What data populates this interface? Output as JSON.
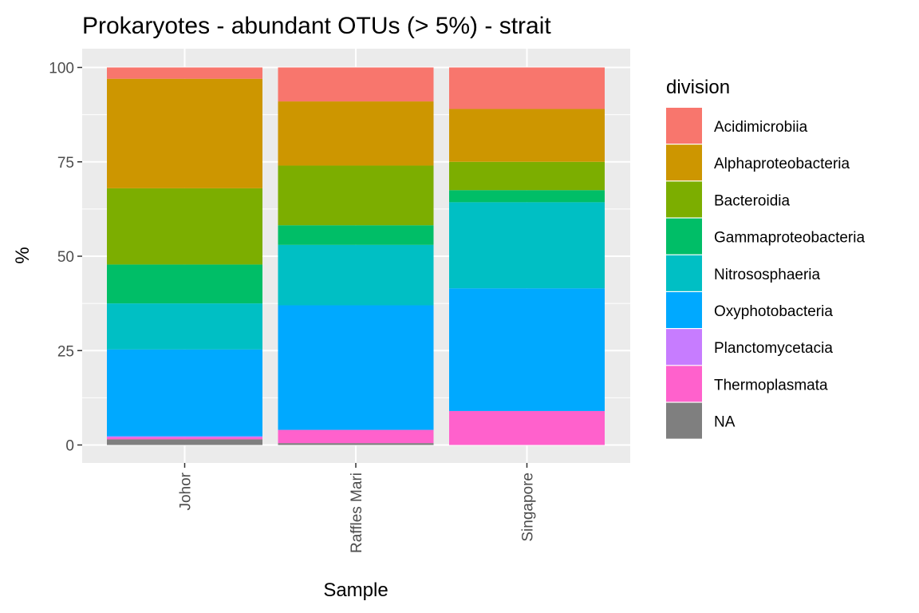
{
  "chart_data": {
    "type": "bar",
    "stacked": true,
    "title": "Prokaryotes - abundant OTUs (> 5%) - strait",
    "xlabel": "Sample",
    "ylabel": "%",
    "ylim": [
      0,
      100
    ],
    "yticks": [
      0,
      25,
      50,
      75,
      100
    ],
    "grid": true,
    "legend_title": "division",
    "legend_position": "right",
    "categories": [
      "Johor",
      "Raffles Mari",
      "Singapore"
    ],
    "series": [
      {
        "name": "NA",
        "color": "#7f7f7f",
        "values": [
          1.5,
          0.5,
          0.0
        ]
      },
      {
        "name": "Thermoplasmata",
        "color": "#ff61cc",
        "values": [
          0.5,
          3.5,
          9.0
        ]
      },
      {
        "name": "Planctomycetacia",
        "color": "#c77cff",
        "values": [
          0.3,
          0.0,
          0.0
        ]
      },
      {
        "name": "Oxyphotobacteria",
        "color": "#00a9ff",
        "values": [
          23.0,
          33.0,
          32.5
        ]
      },
      {
        "name": "Nitrososphaeria",
        "color": "#00bfc4",
        "values": [
          12.2,
          16.0,
          22.8
        ]
      },
      {
        "name": "Gammaproteobacteria",
        "color": "#00be67",
        "values": [
          10.3,
          5.2,
          3.2
        ]
      },
      {
        "name": "Bacteroidia",
        "color": "#7cae00",
        "values": [
          20.2,
          15.8,
          7.5
        ]
      },
      {
        "name": "Alphaproteobacteria",
        "color": "#cd9600",
        "values": [
          29.0,
          17.0,
          14.0
        ]
      },
      {
        "name": "Acidimicrobiia",
        "color": "#f8766d",
        "values": [
          3.0,
          9.0,
          11.0
        ]
      }
    ],
    "legend_order": [
      "Acidimicrobiia",
      "Alphaproteobacteria",
      "Bacteroidia",
      "Gammaproteobacteria",
      "Nitrososphaeria",
      "Oxyphotobacteria",
      "Planctomycetacia",
      "Thermoplasmata",
      "NA"
    ]
  }
}
